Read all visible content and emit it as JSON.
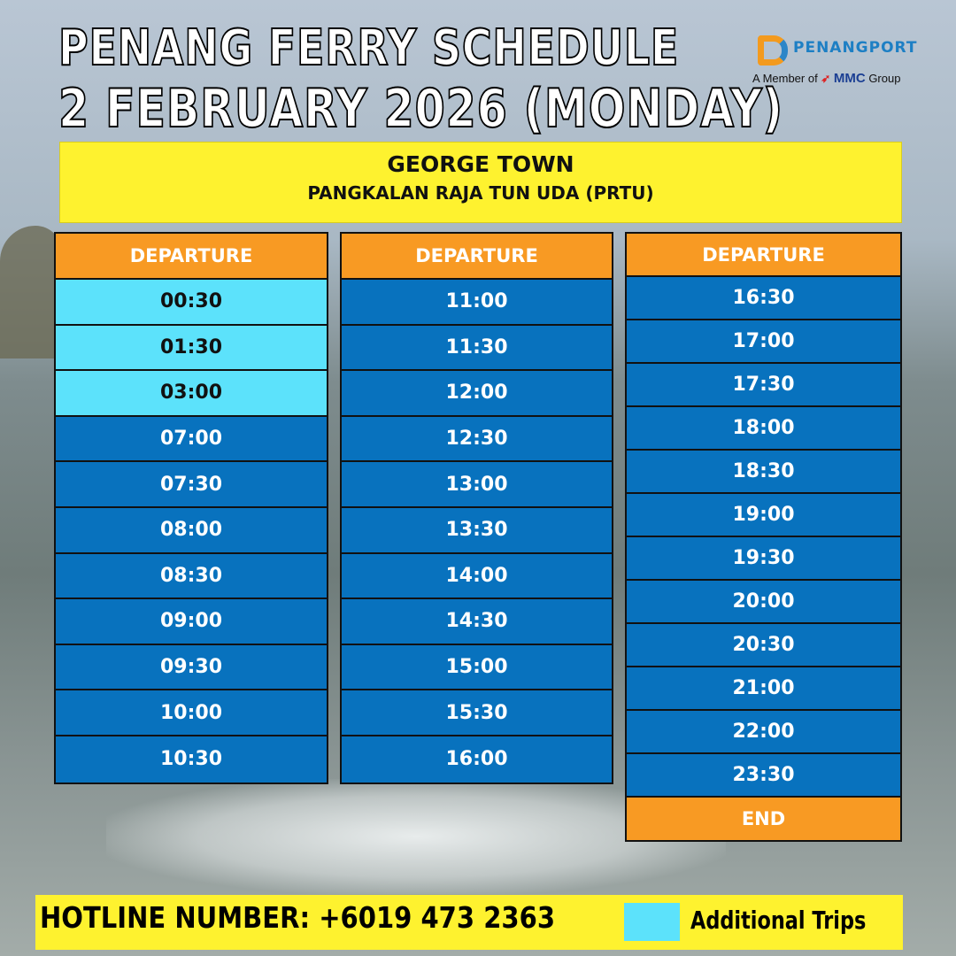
{
  "title": "PENANG FERRY SCHEDULE",
  "date": "2 FEBRUARY 2026 (MONDAY)",
  "logo": {
    "name": "PENANGPORT",
    "member_prefix": "A Member of",
    "group": "MMC",
    "group_suffix": "Group"
  },
  "terminal": {
    "city": "GEORGE TOWN",
    "name": "PANGKALAN RAJA TUN UDA (PRTU)"
  },
  "colors": {
    "regular": "#0872be",
    "additional": "#5ce2fb",
    "header": "#f89a23",
    "banner": "#fef22f"
  },
  "columns": [
    {
      "header": "DEPARTURE",
      "times": [
        {
          "t": "00:30",
          "additional": true
        },
        {
          "t": "01:30",
          "additional": true
        },
        {
          "t": "03:00",
          "additional": true
        },
        {
          "t": "07:00"
        },
        {
          "t": "07:30"
        },
        {
          "t": "08:00"
        },
        {
          "t": "08:30"
        },
        {
          "t": "09:00"
        },
        {
          "t": "09:30"
        },
        {
          "t": "10:00"
        },
        {
          "t": "10:30"
        }
      ]
    },
    {
      "header": "DEPARTURE",
      "times": [
        {
          "t": "11:00"
        },
        {
          "t": "11:30"
        },
        {
          "t": "12:00"
        },
        {
          "t": "12:30"
        },
        {
          "t": "13:00"
        },
        {
          "t": "13:30"
        },
        {
          "t": "14:00"
        },
        {
          "t": "14:30"
        },
        {
          "t": "15:00"
        },
        {
          "t": "15:30"
        },
        {
          "t": "16:00"
        }
      ]
    },
    {
      "header": "DEPARTURE",
      "times": [
        {
          "t": "16:30"
        },
        {
          "t": "17:00"
        },
        {
          "t": "17:30"
        },
        {
          "t": "18:00"
        },
        {
          "t": "18:30"
        },
        {
          "t": "19:00"
        },
        {
          "t": "19:30"
        },
        {
          "t": "20:00"
        },
        {
          "t": "20:30"
        },
        {
          "t": "21:00"
        },
        {
          "t": "22:00"
        },
        {
          "t": "23:30"
        }
      ],
      "footer": "END"
    }
  ],
  "footer": {
    "hotline": "HOTLINE NUMBER: +6019 473 2363",
    "legend_label": "Additional Trips"
  }
}
